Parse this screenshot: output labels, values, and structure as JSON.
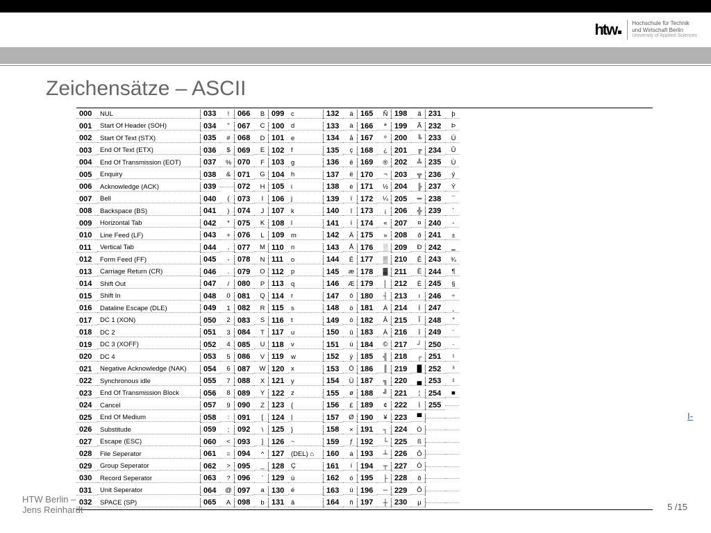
{
  "logo": {
    "name1": "Hochschule für Technik",
    "name2": "und Wirtschaft Berlin",
    "name3": "University of Applied Sciences"
  },
  "title": "Zeichensätze – ASCII",
  "footer": {
    "line1": "HTW Berlin –",
    "line2": "Jens Reinhardt"
  },
  "pagenum": "5 /15",
  "linkfrag": "I-",
  "cols": [
    [
      {
        "n": "000",
        "v": "NUL"
      },
      {
        "n": "001",
        "v": "Start Of Header (SOH)"
      },
      {
        "n": "002",
        "v": "Start Of Text (STX)"
      },
      {
        "n": "003",
        "v": "End   Of Text (ETX)"
      },
      {
        "n": "004",
        "v": "End Of Transmission (EOT)"
      },
      {
        "n": "005",
        "v": "Enquiry"
      },
      {
        "n": "006",
        "v": "Acknowledge (ACK)"
      },
      {
        "n": "007",
        "v": "Bell"
      },
      {
        "n": "008",
        "v": "Backspace (BS)"
      },
      {
        "n": "009",
        "v": "Horizontal Tab"
      },
      {
        "n": "010",
        "v": "Line Feed (LF)"
      },
      {
        "n": "011",
        "v": "Vertical Tab"
      },
      {
        "n": "012",
        "v": "Form Feed (FF)"
      },
      {
        "n": "013",
        "v": "Carriage Return (CR)"
      },
      {
        "n": "014",
        "v": "Shift Out"
      },
      {
        "n": "015",
        "v": "Shift In"
      },
      {
        "n": "016",
        "v": "Dataline Escape (DLE)"
      },
      {
        "n": "017",
        "v": "DC 1 (XON)"
      },
      {
        "n": "018",
        "v": "DC 2"
      },
      {
        "n": "019",
        "v": "DC 3 (XOFF)"
      },
      {
        "n": "020",
        "v": "DC 4"
      },
      {
        "n": "021",
        "v": "Negative Acknowledge (NAK)"
      },
      {
        "n": "022",
        "v": "Synchronous idle"
      },
      {
        "n": "023",
        "v": "End Of Transmission Block"
      },
      {
        "n": "024",
        "v": "Cancel"
      },
      {
        "n": "025",
        "v": "End Of Medium"
      },
      {
        "n": "026",
        "v": "Substitude"
      },
      {
        "n": "027",
        "v": "Escape (ESC)"
      },
      {
        "n": "028",
        "v": "File Seperator"
      },
      {
        "n": "029",
        "v": "Group Seperator"
      },
      {
        "n": "030",
        "v": "Record Seperator"
      },
      {
        "n": "031",
        "v": "Unit Seperator"
      },
      {
        "n": "032",
        "v": "SPACE (SP)"
      }
    ],
    [
      {
        "n": "033",
        "v": "!"
      },
      {
        "n": "034",
        "v": "\""
      },
      {
        "n": "035",
        "v": "#"
      },
      {
        "n": "036",
        "v": "$"
      },
      {
        "n": "037",
        "v": "%"
      },
      {
        "n": "038",
        "v": "&"
      },
      {
        "n": "039",
        "v": ""
      },
      {
        "n": "040",
        "v": "("
      },
      {
        "n": "041",
        "v": ")"
      },
      {
        "n": "042",
        "v": "*"
      },
      {
        "n": "043",
        "v": "+"
      },
      {
        "n": "044",
        "v": ","
      },
      {
        "n": "045",
        "v": "-"
      },
      {
        "n": "046",
        "v": "."
      },
      {
        "n": "047",
        "v": "/"
      },
      {
        "n": "048",
        "v": "0"
      },
      {
        "n": "049",
        "v": "1"
      },
      {
        "n": "050",
        "v": "2"
      },
      {
        "n": "051",
        "v": "3"
      },
      {
        "n": "052",
        "v": "4"
      },
      {
        "n": "053",
        "v": "5"
      },
      {
        "n": "054",
        "v": "6"
      },
      {
        "n": "055",
        "v": "7"
      },
      {
        "n": "056",
        "v": "8"
      },
      {
        "n": "057",
        "v": "9"
      },
      {
        "n": "058",
        "v": ":"
      },
      {
        "n": "059",
        "v": ";"
      },
      {
        "n": "060",
        "v": "<"
      },
      {
        "n": "061",
        "v": "="
      },
      {
        "n": "062",
        "v": ">"
      },
      {
        "n": "063",
        "v": "?"
      },
      {
        "n": "064",
        "v": "@"
      },
      {
        "n": "065",
        "v": "A"
      }
    ],
    [
      {
        "n": "066",
        "v": "B"
      },
      {
        "n": "067",
        "v": "C"
      },
      {
        "n": "068",
        "v": "D"
      },
      {
        "n": "069",
        "v": "E"
      },
      {
        "n": "070",
        "v": "F"
      },
      {
        "n": "071",
        "v": "G"
      },
      {
        "n": "072",
        "v": "H"
      },
      {
        "n": "073",
        "v": "I"
      },
      {
        "n": "074",
        "v": "J"
      },
      {
        "n": "075",
        "v": "K"
      },
      {
        "n": "076",
        "v": "L"
      },
      {
        "n": "077",
        "v": "M"
      },
      {
        "n": "078",
        "v": "N"
      },
      {
        "n": "079",
        "v": "O"
      },
      {
        "n": "080",
        "v": "P"
      },
      {
        "n": "081",
        "v": "Q"
      },
      {
        "n": "082",
        "v": "R"
      },
      {
        "n": "083",
        "v": "S"
      },
      {
        "n": "084",
        "v": "T"
      },
      {
        "n": "085",
        "v": "U"
      },
      {
        "n": "086",
        "v": "V"
      },
      {
        "n": "087",
        "v": "W"
      },
      {
        "n": "088",
        "v": "X"
      },
      {
        "n": "089",
        "v": "Y"
      },
      {
        "n": "090",
        "v": "Z"
      },
      {
        "n": "091",
        "v": "["
      },
      {
        "n": "092",
        "v": "\\"
      },
      {
        "n": "093",
        "v": "]"
      },
      {
        "n": "094",
        "v": "^"
      },
      {
        "n": "095",
        "v": "_"
      },
      {
        "n": "096",
        "v": "`"
      },
      {
        "n": "097",
        "v": "a"
      },
      {
        "n": "098",
        "v": "b"
      }
    ],
    [
      {
        "n": "099",
        "v": "c"
      },
      {
        "n": "100",
        "v": "d"
      },
      {
        "n": "101",
        "v": "e"
      },
      {
        "n": "102",
        "v": "f"
      },
      {
        "n": "103",
        "v": "g"
      },
      {
        "n": "104",
        "v": "h"
      },
      {
        "n": "105",
        "v": "i"
      },
      {
        "n": "106",
        "v": "j"
      },
      {
        "n": "107",
        "v": "k"
      },
      {
        "n": "108",
        "v": "l"
      },
      {
        "n": "109",
        "v": "m"
      },
      {
        "n": "110",
        "v": "n"
      },
      {
        "n": "111",
        "v": "o"
      },
      {
        "n": "112",
        "v": "p"
      },
      {
        "n": "113",
        "v": "q"
      },
      {
        "n": "114",
        "v": "r"
      },
      {
        "n": "115",
        "v": "s"
      },
      {
        "n": "116",
        "v": "t"
      },
      {
        "n": "117",
        "v": "u"
      },
      {
        "n": "118",
        "v": "v"
      },
      {
        "n": "119",
        "v": "w"
      },
      {
        "n": "120",
        "v": "x"
      },
      {
        "n": "121",
        "v": "y"
      },
      {
        "n": "122",
        "v": "z"
      },
      {
        "n": "123",
        "v": "{"
      },
      {
        "n": "124",
        "v": "|"
      },
      {
        "n": "125",
        "v": "}"
      },
      {
        "n": "126",
        "v": "~"
      },
      {
        "n": "127",
        "v": "(DEL) ⌂"
      },
      {
        "n": "128",
        "v": "Ç"
      },
      {
        "n": "129",
        "v": "ü"
      },
      {
        "n": "130",
        "v": "é"
      },
      {
        "n": "131",
        "v": "â"
      }
    ],
    [
      {
        "n": "132",
        "v": "ä"
      },
      {
        "n": "133",
        "v": "à"
      },
      {
        "n": "134",
        "v": "å"
      },
      {
        "n": "135",
        "v": "ç"
      },
      {
        "n": "136",
        "v": "ê"
      },
      {
        "n": "137",
        "v": "ë"
      },
      {
        "n": "138",
        "v": "è"
      },
      {
        "n": "139",
        "v": "ï"
      },
      {
        "n": "140",
        "v": "î"
      },
      {
        "n": "141",
        "v": "ì"
      },
      {
        "n": "142",
        "v": "Ä"
      },
      {
        "n": "143",
        "v": "Å"
      },
      {
        "n": "144",
        "v": "É"
      },
      {
        "n": "145",
        "v": "æ"
      },
      {
        "n": "146",
        "v": "Æ"
      },
      {
        "n": "147",
        "v": "ô"
      },
      {
        "n": "148",
        "v": "ö"
      },
      {
        "n": "149",
        "v": "ò"
      },
      {
        "n": "150",
        "v": "û"
      },
      {
        "n": "151",
        "v": "ù"
      },
      {
        "n": "152",
        "v": "ÿ"
      },
      {
        "n": "153",
        "v": "Ö"
      },
      {
        "n": "154",
        "v": "Ü"
      },
      {
        "n": "155",
        "v": "ø"
      },
      {
        "n": "156",
        "v": "£"
      },
      {
        "n": "157",
        "v": "Ø"
      },
      {
        "n": "158",
        "v": "×"
      },
      {
        "n": "159",
        "v": "ƒ"
      },
      {
        "n": "160",
        "v": "á"
      },
      {
        "n": "161",
        "v": "í"
      },
      {
        "n": "162",
        "v": "ó"
      },
      {
        "n": "163",
        "v": "ú"
      },
      {
        "n": "164",
        "v": "ñ"
      }
    ],
    [
      {
        "n": "165",
        "v": "Ñ"
      },
      {
        "n": "166",
        "v": "ª"
      },
      {
        "n": "167",
        "v": "º"
      },
      {
        "n": "168",
        "v": "¿"
      },
      {
        "n": "169",
        "v": "®"
      },
      {
        "n": "170",
        "v": "¬"
      },
      {
        "n": "171",
        "v": "½"
      },
      {
        "n": "172",
        "v": "¼"
      },
      {
        "n": "173",
        "v": "¡"
      },
      {
        "n": "174",
        "v": "«"
      },
      {
        "n": "175",
        "v": "»"
      },
      {
        "n": "176",
        "v": "░"
      },
      {
        "n": "177",
        "v": "▒"
      },
      {
        "n": "178",
        "v": "▓"
      },
      {
        "n": "179",
        "v": "│"
      },
      {
        "n": "180",
        "v": "┤"
      },
      {
        "n": "181",
        "v": "Á"
      },
      {
        "n": "182",
        "v": "Â"
      },
      {
        "n": "183",
        "v": "À"
      },
      {
        "n": "184",
        "v": "©"
      },
      {
        "n": "185",
        "v": "╣"
      },
      {
        "n": "186",
        "v": "║"
      },
      {
        "n": "187",
        "v": "╗"
      },
      {
        "n": "188",
        "v": "╝"
      },
      {
        "n": "189",
        "v": "¢"
      },
      {
        "n": "190",
        "v": "¥"
      },
      {
        "n": "191",
        "v": "┐"
      },
      {
        "n": "192",
        "v": "└"
      },
      {
        "n": "193",
        "v": "┴"
      },
      {
        "n": "194",
        "v": "┬"
      },
      {
        "n": "195",
        "v": "├"
      },
      {
        "n": "196",
        "v": "─"
      },
      {
        "n": "197",
        "v": "┼"
      }
    ],
    [
      {
        "n": "198",
        "v": "ã"
      },
      {
        "n": "199",
        "v": "Ã"
      },
      {
        "n": "200",
        "v": "╚"
      },
      {
        "n": "201",
        "v": "╔"
      },
      {
        "n": "202",
        "v": "╩"
      },
      {
        "n": "203",
        "v": "╦"
      },
      {
        "n": "204",
        "v": "╠"
      },
      {
        "n": "205",
        "v": "═"
      },
      {
        "n": "206",
        "v": "╬"
      },
      {
        "n": "207",
        "v": "¤"
      },
      {
        "n": "208",
        "v": "ð"
      },
      {
        "n": "209",
        "v": "Ð"
      },
      {
        "n": "210",
        "v": "Ê"
      },
      {
        "n": "211",
        "v": "Ë"
      },
      {
        "n": "212",
        "v": "È"
      },
      {
        "n": "213",
        "v": "ı"
      },
      {
        "n": "214",
        "v": "Í"
      },
      {
        "n": "215",
        "v": "Î"
      },
      {
        "n": "216",
        "v": "Ï"
      },
      {
        "n": "217",
        "v": "┘"
      },
      {
        "n": "218",
        "v": "┌"
      },
      {
        "n": "219",
        "v": "█"
      },
      {
        "n": "220",
        "v": "▄"
      },
      {
        "n": "221",
        "v": "¦"
      },
      {
        "n": "222",
        "v": "Ì"
      },
      {
        "n": "223",
        "v": "▀"
      },
      {
        "n": "224",
        "v": "Ó"
      },
      {
        "n": "225",
        "v": "ß"
      },
      {
        "n": "226",
        "v": "Ô"
      },
      {
        "n": "227",
        "v": "Ò"
      },
      {
        "n": "228",
        "v": "õ"
      },
      {
        "n": "229",
        "v": "Õ"
      },
      {
        "n": "230",
        "v": "µ"
      }
    ],
    [
      {
        "n": "231",
        "v": "þ"
      },
      {
        "n": "232",
        "v": "Þ"
      },
      {
        "n": "233",
        "v": "Ú"
      },
      {
        "n": "234",
        "v": "Û"
      },
      {
        "n": "235",
        "v": "Ù"
      },
      {
        "n": "236",
        "v": "ý"
      },
      {
        "n": "237",
        "v": "Ý"
      },
      {
        "n": "238",
        "v": "¯"
      },
      {
        "n": "239",
        "v": "´"
      },
      {
        "n": "240",
        "v": "­-"
      },
      {
        "n": "241",
        "v": "±"
      },
      {
        "n": "242",
        "v": "‗"
      },
      {
        "n": "243",
        "v": "¾"
      },
      {
        "n": "244",
        "v": "¶"
      },
      {
        "n": "245",
        "v": "§"
      },
      {
        "n": "246",
        "v": "÷"
      },
      {
        "n": "247",
        "v": "¸"
      },
      {
        "n": "248",
        "v": "°"
      },
      {
        "n": "249",
        "v": "¨"
      },
      {
        "n": "250",
        "v": "·"
      },
      {
        "n": "251",
        "v": "¹"
      },
      {
        "n": "252",
        "v": "³"
      },
      {
        "n": "253",
        "v": "²"
      },
      {
        "n": "254",
        "v": "■"
      },
      {
        "n": "255",
        "v": " "
      }
    ]
  ]
}
